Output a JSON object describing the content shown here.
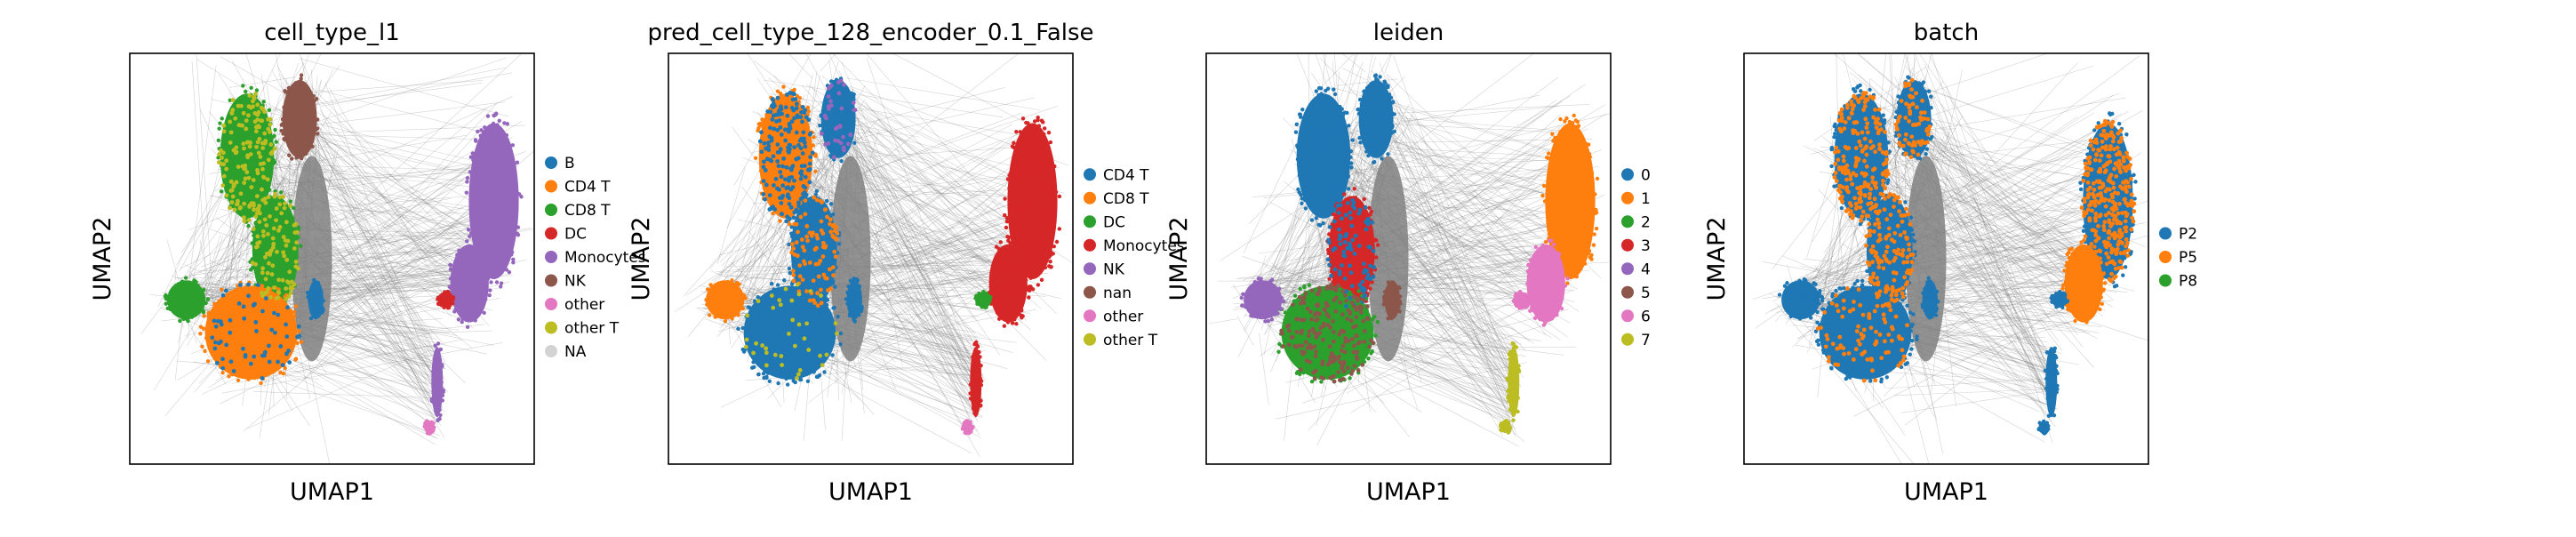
{
  "chart_data": [
    {
      "type": "scatter",
      "title": "cell_type_l1",
      "xlabel": "UMAP1",
      "ylabel": "UMAP2",
      "legend_placement": "right",
      "grid": false,
      "categories": [
        {
          "name": "B",
          "color": "#1f77b4"
        },
        {
          "name": "CD4 T",
          "color": "#ff7f0e"
        },
        {
          "name": "CD8 T",
          "color": "#2ca02c"
        },
        {
          "name": "DC",
          "color": "#d62728"
        },
        {
          "name": "Monocytes",
          "color": "#9467bd"
        },
        {
          "name": "NK",
          "color": "#8c564b"
        },
        {
          "name": "other",
          "color": "#e377c2"
        },
        {
          "name": "other T",
          "color": "#bcbd22"
        },
        {
          "name": "NA",
          "color": "#d3d3d3"
        }
      ]
    },
    {
      "type": "scatter",
      "title": "pred_cell_type_128_encoder_0.1_False",
      "xlabel": "UMAP1",
      "ylabel": "UMAP2",
      "legend_placement": "right",
      "grid": false,
      "categories": [
        {
          "name": "CD4 T",
          "color": "#1f77b4"
        },
        {
          "name": "CD8 T",
          "color": "#ff7f0e"
        },
        {
          "name": "DC",
          "color": "#2ca02c"
        },
        {
          "name": "Monocytes",
          "color": "#d62728"
        },
        {
          "name": "NK",
          "color": "#9467bd"
        },
        {
          "name": "nan",
          "color": "#8c564b"
        },
        {
          "name": "other",
          "color": "#e377c2"
        },
        {
          "name": "other T",
          "color": "#bcbd22"
        }
      ]
    },
    {
      "type": "scatter",
      "title": "leiden",
      "xlabel": "UMAP1",
      "ylabel": "UMAP2",
      "legend_placement": "right",
      "grid": false,
      "categories": [
        {
          "name": "0",
          "color": "#1f77b4"
        },
        {
          "name": "1",
          "color": "#ff7f0e"
        },
        {
          "name": "2",
          "color": "#2ca02c"
        },
        {
          "name": "3",
          "color": "#d62728"
        },
        {
          "name": "4",
          "color": "#9467bd"
        },
        {
          "name": "5",
          "color": "#8c564b"
        },
        {
          "name": "6",
          "color": "#e377c2"
        },
        {
          "name": "7",
          "color": "#bcbd22"
        }
      ]
    },
    {
      "type": "scatter",
      "title": "batch",
      "xlabel": "UMAP1",
      "ylabel": "UMAP2",
      "legend_placement": "right",
      "grid": false,
      "categories": [
        {
          "name": "P2",
          "color": "#1f77b4"
        },
        {
          "name": "P5",
          "color": "#ff7f0e"
        },
        {
          "name": "P8",
          "color": "#2ca02c"
        }
      ]
    }
  ]
}
